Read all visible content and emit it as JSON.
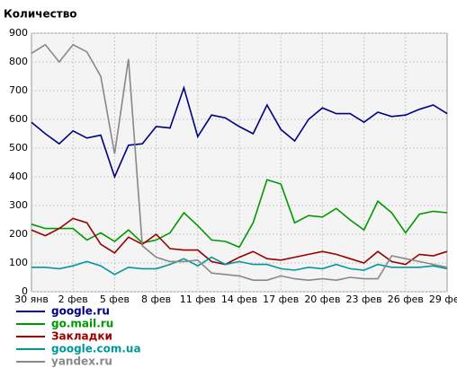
{
  "chart_data": {
    "type": "line",
    "title": "Количество",
    "categories": [
      "30 янв",
      null,
      null,
      "2 фев",
      null,
      null,
      "5 фев",
      null,
      null,
      "8 фев",
      null,
      null,
      "11 фев",
      null,
      null,
      "14 фев",
      null,
      null,
      "17 фев",
      null,
      null,
      "20 фев",
      null,
      null,
      "23 фев",
      null,
      null,
      "26 фев",
      null,
      null,
      "29 фев"
    ],
    "ylim": [
      0,
      900
    ],
    "yticks": [
      0,
      100,
      200,
      300,
      400,
      500,
      600,
      700,
      800,
      900
    ],
    "grid": true,
    "series": [
      {
        "name": "google.ru",
        "color": "#000080",
        "values": [
          590,
          550,
          515,
          560,
          535,
          545,
          400,
          510,
          515,
          575,
          570,
          710,
          540,
          615,
          605,
          575,
          550,
          650,
          565,
          525,
          600,
          640,
          620,
          620,
          590,
          625,
          610,
          615,
          635,
          650,
          620
        ]
      },
      {
        "name": "go.mail.ru",
        "color": "#009900",
        "values": [
          235,
          220,
          220,
          220,
          180,
          205,
          175,
          215,
          170,
          180,
          205,
          275,
          230,
          180,
          175,
          155,
          240,
          390,
          375,
          240,
          265,
          260,
          290,
          250,
          215,
          315,
          275,
          205,
          270,
          280,
          275
        ]
      },
      {
        "name": "Закладки",
        "color": "#990000",
        "values": [
          215,
          195,
          220,
          255,
          240,
          165,
          135,
          190,
          165,
          200,
          150,
          145,
          145,
          105,
          95,
          120,
          140,
          115,
          110,
          120,
          130,
          140,
          130,
          115,
          100,
          140,
          105,
          95,
          130,
          125,
          140
        ]
      },
      {
        "name": "google.com.ua",
        "color": "#009999",
        "values": [
          85,
          85,
          80,
          90,
          105,
          90,
          60,
          85,
          80,
          80,
          95,
          115,
          90,
          120,
          95,
          105,
          95,
          95,
          80,
          75,
          85,
          80,
          95,
          80,
          75,
          95,
          85,
          85,
          85,
          90,
          80
        ]
      },
      {
        "name": "yandex.ru",
        "color": "#888888",
        "values": [
          830,
          860,
          800,
          860,
          835,
          750,
          480,
          810,
          160,
          120,
          105,
          105,
          110,
          65,
          60,
          55,
          40,
          40,
          55,
          45,
          40,
          45,
          40,
          50,
          45,
          45,
          125,
          115,
          105,
          95,
          85
        ]
      }
    ]
  }
}
